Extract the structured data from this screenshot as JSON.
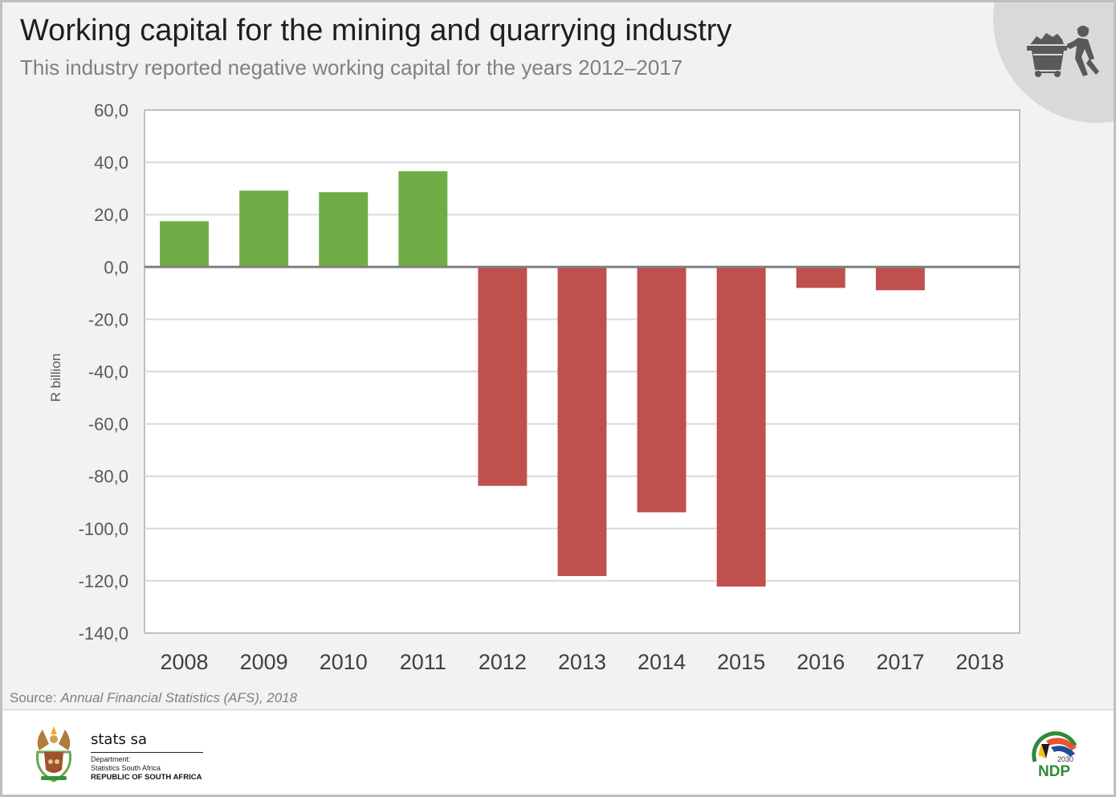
{
  "header": {
    "title": "Working capital for the mining and quarrying industry",
    "subtitle": "This industry reported negative working capital for the years 2012–2017",
    "corner_icon": "miner-pushing-cart-icon"
  },
  "chart_data": {
    "type": "bar",
    "title": "Working capital for the mining and quarrying industry",
    "subtitle": "This industry reported negative working capital for the years 2012–2017",
    "xlabel": "",
    "ylabel": "R billion",
    "categories": [
      "2008",
      "2009",
      "2010",
      "2011",
      "2012",
      "2013",
      "2014",
      "2015",
      "2016",
      "2017",
      "2018"
    ],
    "values": [
      17.5,
      29.2,
      28.6,
      36.6,
      -83.7,
      -118.2,
      -93.8,
      -122.2,
      -8.0,
      -8.9,
      null
    ],
    "ylim": [
      -140,
      60
    ],
    "yticks": [
      60,
      40,
      20,
      0,
      -20,
      -40,
      -60,
      -80,
      -100,
      -120,
      -140
    ],
    "ytick_labels": [
      "60,0",
      "40,0",
      "20,0",
      "0,0",
      "-20,0",
      "-40,0",
      "-60,0",
      "-80,0",
      "-100,0",
      "-120,0",
      "-140,0"
    ],
    "grid": true,
    "legend": "none",
    "colors": {
      "positive": "#70ad47",
      "negative": "#c0504d",
      "zero_line": "#808080",
      "grid": "#d9d9d9"
    }
  },
  "source": {
    "prefix": "Source: ",
    "text": "Annual Financial Statistics (AFS), 2018"
  },
  "footer": {
    "org_name": "stats sa",
    "dept_line1": "Department:",
    "dept_line2": "Statistics South Africa",
    "country": "REPUBLIC OF SOUTH AFRICA",
    "ndp_label": "NDP",
    "ndp_year": "2030"
  }
}
